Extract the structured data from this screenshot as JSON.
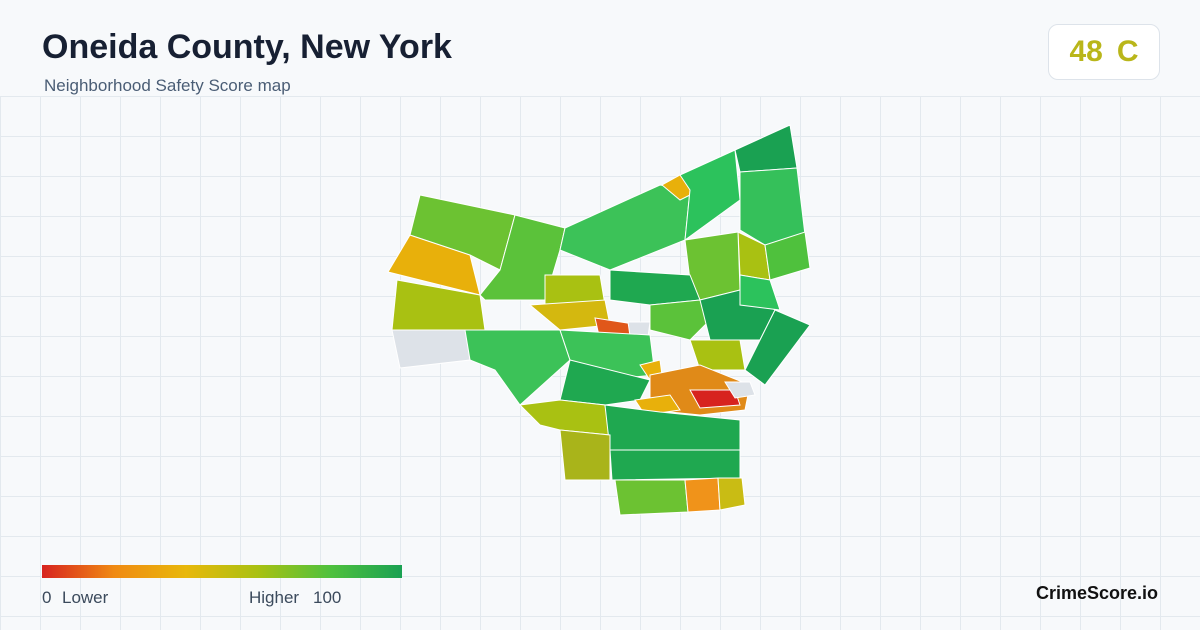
{
  "header": {
    "title": "Oneida County, New York",
    "subtitle": "Neighborhood Safety Score map"
  },
  "score": {
    "value": 48,
    "grade": "C"
  },
  "legend": {
    "min": 0,
    "min_label": "Lower",
    "max_label": "Higher",
    "max": 100
  },
  "brand": "CrimeScore.io"
}
